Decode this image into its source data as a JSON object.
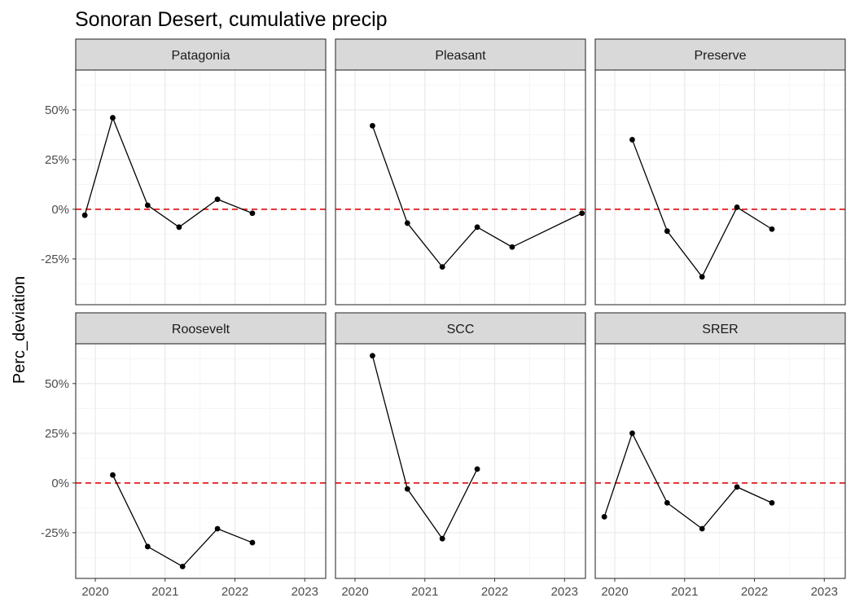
{
  "chart_data": {
    "type": "line",
    "title": "Sonoran Desert, cumulative precip",
    "xlabel": "",
    "ylabel": "Perc_deviation",
    "xlim": [
      2019.72,
      2023.3
    ],
    "ylim": [
      -0.48,
      0.7
    ],
    "x_ticks": [
      2020,
      2021,
      2022,
      2023
    ],
    "x_tick_labels": [
      "2020",
      "2021",
      "2022",
      "2023"
    ],
    "y_ticks": [
      -0.25,
      0,
      0.25,
      0.5
    ],
    "y_tick_labels": [
      "-25%",
      "0%",
      "25%",
      "50%"
    ],
    "reference_line": {
      "y": 0,
      "color": "#e31a1c",
      "style": "dashed"
    },
    "grid": true,
    "facets": [
      {
        "name": "Patagonia",
        "x": [
          2019.85,
          2020.25,
          2020.75,
          2021.2,
          2021.75,
          2022.25
        ],
        "values": [
          -0.03,
          0.46,
          0.02,
          -0.09,
          0.05,
          -0.02
        ]
      },
      {
        "name": "Pleasant",
        "x": [
          2020.25,
          2020.75,
          2021.25,
          2021.75,
          2022.25,
          2023.25
        ],
        "values": [
          0.42,
          -0.07,
          -0.29,
          -0.09,
          -0.19,
          -0.02
        ]
      },
      {
        "name": "Preserve",
        "x": [
          2020.25,
          2020.75,
          2021.25,
          2021.75,
          2022.25
        ],
        "values": [
          0.35,
          -0.11,
          -0.34,
          0.01,
          -0.1
        ]
      },
      {
        "name": "Roosevelt",
        "x": [
          2020.25,
          2020.75,
          2021.25,
          2021.75,
          2022.25
        ],
        "values": [
          0.04,
          -0.32,
          -0.42,
          -0.23,
          -0.3
        ]
      },
      {
        "name": "SCC",
        "x": [
          2020.25,
          2020.75,
          2021.25,
          2021.75
        ],
        "values": [
          0.64,
          -0.03,
          -0.28,
          0.07
        ]
      },
      {
        "name": "SRER",
        "x": [
          2019.85,
          2020.25,
          2020.75,
          2021.25,
          2021.75,
          2022.25
        ],
        "values": [
          -0.17,
          0.25,
          -0.1,
          -0.23,
          -0.02,
          -0.1
        ]
      }
    ]
  },
  "colors": {
    "line": "#000000",
    "point": "#000000",
    "reference": "#e31a1c",
    "strip_fill": "#d9d9d9",
    "panel_border": "#333333",
    "grid_major": "#ebebeb",
    "grid_minor": "#f5f5f5",
    "tick_text": "#4d4d4d"
  }
}
